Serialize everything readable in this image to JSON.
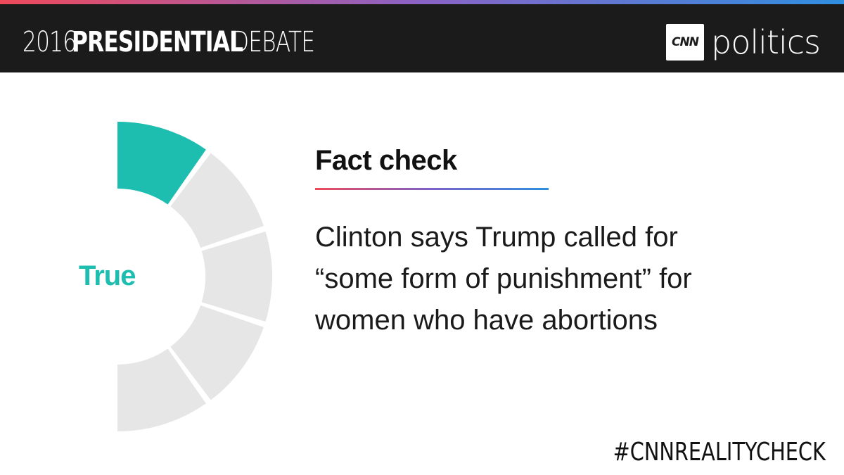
{
  "header": {
    "title_year": "2016",
    "title_main": "PRESIDENTIAL",
    "title_end": "DEBATE",
    "logo_text": "CNN",
    "brand_word": "politics"
  },
  "rating": {
    "verdict": "True",
    "level": 1,
    "scale_segments": 5,
    "active_color": "#1dbdb0",
    "inactive_color": "#e6e6e6"
  },
  "fact_check": {
    "heading": "Fact check",
    "claim_line1": "Clinton says Trump called for",
    "claim_line2": "“some form of punishment” for",
    "claim_line3": "women who have abortions"
  },
  "footer": {
    "hashtag": "#CNNREALITYCHECK"
  },
  "colors": {
    "header_bg": "#1b1b1b",
    "accent_red": "#ef4a5b",
    "accent_blue": "#2f8fe0"
  }
}
